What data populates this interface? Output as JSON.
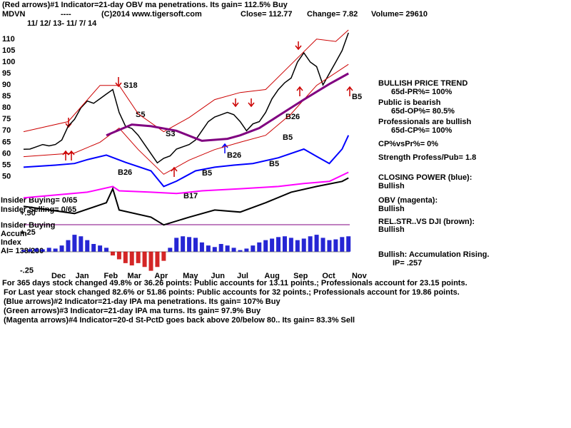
{
  "header": {
    "line1": "(Red arrows)#1 Indicator=21-day OBV ma penetrations. Its gain= 112.5% Buy",
    "symbol": "MDVN",
    "dashes": "----",
    "copyright": "(C)2014 www.tigersoft.com",
    "close": "Close=  112.77",
    "change": "Change= 7.82",
    "volume": "Volume= 29610",
    "dates": "11/ 12/ 13- 11/ 7/ 14"
  },
  "right_panel": [
    "BULLISH PRICE TREND",
    "65d-PR%= 100%",
    "Public is bearish",
    "65d-OP%= 80.5%",
    "Professionals are bullish",
    "65d-CP%= 100%",
    "CP%vsPr%=  0%",
    "Strength Profess/Pub= 1.8",
    "CLOSING POWER (blue):",
    "Bullish",
    "OBV (magenta):",
    "Bullish",
    "REL.STR..VS DJI (brown):",
    "Bullish",
    "Bullish: Accumulation Rising.",
    "IP=  .257"
  ],
  "left_panel": [
    "Insider Buying= 0/65",
    "Insider Selling= 0/65",
    "Insider Buying",
    "Accum",
    "Index",
    "AI= 138/200"
  ],
  "footer": [
    "For 365 days stock changed  49.8% or  36.26 points:  Public accounts for  13.11 points.;  Professionals account for  23.15 points.",
    "For Last year stock changed  82.6% or  51.86 points:  Public accounts for  32 points.;  Professionals account for  19.86 points.",
    "(Blue arrows)#2 Indicator=21-day IPA ma penetrations. Its gain= 107% Buy",
    "(Green arrows)#3 Indicator=21-day IPA ma turns. Its gain= 97.9% Buy",
    "(Magenta arrows)#4 Indicator=20-d St-PctD goes back above 20/below 80.. Its gain= 83.3% Sell"
  ],
  "annotations": [
    "S18",
    "S5",
    "S3",
    "B26",
    "B5",
    "B17",
    "B26",
    "B5",
    "B5",
    "B26",
    "B5"
  ],
  "chart_data": [
    {
      "type": "line",
      "x": [
        0,
        1,
        2,
        3,
        4,
        5,
        6,
        7,
        8,
        9,
        10,
        11,
        12,
        13,
        14,
        15,
        16,
        17,
        18,
        19,
        20,
        21,
        22,
        23,
        24,
        25,
        26,
        27,
        28,
        29,
        30,
        31,
        32,
        33,
        34,
        35,
        36,
        37,
        38,
        39,
        40,
        41,
        42,
        43,
        44,
        45,
        46,
        47,
        48,
        49,
        50,
        51
      ],
      "xlim": [
        0,
        51.2
      ],
      "xticks": [
        {
          "value": 5.5,
          "label": "Dec"
        },
        {
          "value": 9.2,
          "label": "Jan"
        },
        {
          "value": 13.7,
          "label": "Feb"
        },
        {
          "value": 17.4,
          "label": "Mar"
        },
        {
          "value": 21.6,
          "label": "Apr"
        },
        {
          "value": 26.2,
          "label": "May"
        },
        {
          "value": 30.5,
          "label": "Jun"
        },
        {
          "value": 34.4,
          "label": "Jul"
        },
        {
          "value": 39.0,
          "label": "Aug"
        },
        {
          "value": 43.5,
          "label": "Sep"
        },
        {
          "value": 47.9,
          "label": "Oct"
        },
        {
          "value": 52.7,
          "label": "Nov"
        }
      ],
      "ylim": [
        29,
        114
      ],
      "yticks": [
        50,
        55,
        60,
        65,
        70,
        75,
        80,
        85,
        90,
        95,
        100,
        105,
        110
      ],
      "series": [
        {
          "color": "#000000",
          "values": [
            61.9,
            62,
            63,
            64,
            63.4,
            64,
            66,
            72,
            75,
            80,
            83,
            82,
            84,
            86,
            88,
            78,
            72,
            71,
            68,
            64,
            60,
            56,
            58,
            59,
            62,
            63,
            64,
            66,
            70,
            74,
            76,
            77,
            78,
            77,
            74,
            70,
            73,
            74,
            78,
            84,
            88,
            91,
            93,
            100,
            104,
            100,
            98,
            90,
            95,
            100,
            105,
            112.77
          ]
        },
        {
          "color": "#cc0000",
          "x": [
            0,
            7,
            12,
            15,
            18,
            22,
            26,
            30,
            34,
            38,
            42,
            46,
            49,
            51
          ],
          "values": [
            69.6,
            74,
            89.8,
            89.8,
            77.4,
            69.6,
            75.8,
            83.6,
            86.7,
            88,
            99,
            110,
            109,
            114
          ]
        },
        {
          "color": "#cc0000",
          "x": [
            0,
            8,
            12,
            15,
            18,
            22,
            26,
            30,
            34,
            38,
            42,
            46,
            51
          ],
          "values": [
            58.7,
            60.3,
            65,
            71.2,
            61.8,
            51,
            57.2,
            61.8,
            65,
            68,
            77.4,
            89.8,
            99
          ]
        },
        {
          "color": "#800080",
          "x": [
            13,
            17,
            20,
            24,
            28,
            32,
            34,
            37,
            40,
            44,
            48,
            51
          ],
          "values": [
            68,
            72.7,
            72,
            70,
            65.6,
            66.5,
            68,
            71.2,
            76.5,
            83.6,
            90.4,
            95
          ]
        },
        {
          "color": "#0000ff",
          "x": [
            0,
            5,
            8,
            10,
            13,
            16,
            20,
            22,
            24,
            27,
            30,
            33,
            36,
            40,
            44,
            46,
            48,
            50,
            51
          ],
          "values": [
            54.1,
            55,
            55.7,
            57.4,
            59.4,
            56.2,
            52.5,
            45.7,
            48,
            52.5,
            54.1,
            55,
            55.7,
            58.2,
            62,
            58.8,
            55.7,
            62,
            68
          ]
        },
        {
          "color": "#ff00ff",
          "x": [
            0,
            10,
            14,
            15,
            20,
            24,
            28,
            34,
            40,
            44,
            48,
            51
          ],
          "values": [
            40.7,
            43.2,
            45.7,
            43.8,
            43.2,
            42.6,
            43.8,
            44.7,
            45.7,
            47,
            47.9,
            51.9
          ]
        },
        {
          "color": "#000000",
          "x": [
            0,
            8,
            13,
            14,
            15,
            20,
            22,
            26,
            30,
            34,
            38,
            42,
            46,
            50,
            51
          ],
          "values": [
            37,
            33.9,
            38.6,
            44.7,
            35.4,
            32.3,
            28.9,
            32.3,
            35.4,
            34.5,
            38.6,
            43.2,
            45.7,
            47.9,
            49.4
          ]
        }
      ]
    },
    {
      "type": "bar",
      "x": [
        0,
        1,
        2,
        3,
        4,
        5,
        6,
        7,
        8,
        9,
        10,
        11,
        12,
        13,
        14,
        15,
        16,
        17,
        18,
        19,
        20,
        21,
        22,
        23,
        24,
        25,
        26,
        27,
        28,
        29,
        30,
        31,
        32,
        33,
        34,
        35,
        36,
        37,
        38,
        39,
        40,
        41,
        42,
        43,
        44,
        45,
        46,
        47,
        48,
        49,
        50,
        51
      ],
      "xlim": [
        0,
        51.2
      ],
      "ylim": [
        -0.3,
        0.5
      ],
      "yticks": [
        {
          "value": 0.5,
          "label": "+.50"
        },
        {
          "value": 0.25,
          "label": "+.25"
        },
        {
          "value": -0.25,
          "label": "-.25"
        }
      ],
      "color": "#0000cc",
      "negative_color": "#cc0000",
      "values": [
        0.02,
        0.03,
        0.04,
        0.03,
        0.05,
        0.04,
        0.08,
        0.15,
        0.22,
        0.2,
        0.15,
        0.1,
        0.08,
        0.05,
        -0.05,
        -0.1,
        -0.15,
        -0.18,
        -0.15,
        -0.2,
        -0.25,
        -0.2,
        -0.12,
        0.05,
        0.18,
        0.2,
        0.19,
        0.18,
        0.12,
        0.08,
        0.06,
        0.1,
        0.08,
        0.05,
        0.02,
        0.04,
        0.08,
        0.12,
        0.15,
        0.17,
        0.19,
        0.2,
        0.18,
        0.15,
        0.17,
        0.2,
        0.22,
        0.18,
        0.15,
        0.16,
        0.19,
        0.2
      ]
    }
  ]
}
